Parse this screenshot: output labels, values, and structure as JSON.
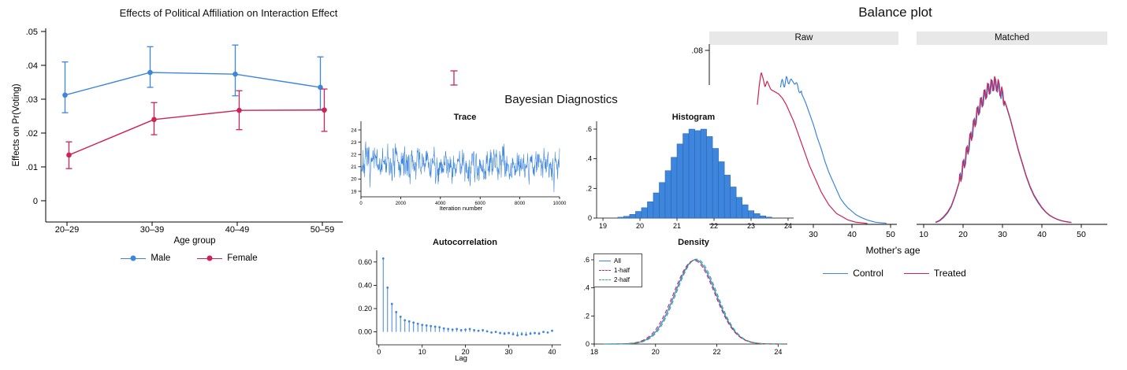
{
  "figure_titles": {
    "bayesian": "Bayesian Diagnostics"
  },
  "colors": {
    "blue": "#3d85dd",
    "crimson": "#cc2457",
    "green": "#3aa76d",
    "axis": "#000000",
    "band": "#e8e8e8"
  },
  "decorations": {
    "stray_error_bar": {
      "type": "error-bar-fragment",
      "color": "#cc2457"
    }
  },
  "chart_data": [
    {
      "id": "effects",
      "type": "line",
      "title": "Effects of Political Affiliation on Interaction Effect",
      "xlabel": "Age group",
      "ylabel": "Effects on Pr(Voting)",
      "categories": [
        "20–29",
        "30–39",
        "40–49",
        "50–59"
      ],
      "yticks": [
        0,
        0.01,
        0.02,
        0.03,
        0.04,
        0.05
      ],
      "ytick_labels": [
        "0",
        ".01",
        ".02",
        ".03",
        ".04",
        ".05"
      ],
      "ylim": [
        -0.006,
        0.053
      ],
      "legend_position": "bottom",
      "series": [
        {
          "name": "Male",
          "color": "#3d85dd",
          "values": [
            0.0312,
            0.0379,
            0.0374,
            0.0335
          ],
          "ci_low": [
            0.026,
            0.0335,
            0.031,
            0.027
          ],
          "ci_high": [
            0.041,
            0.0455,
            0.046,
            0.0425
          ]
        },
        {
          "name": "Female",
          "color": "#cc2457",
          "values": [
            0.0135,
            0.024,
            0.0267,
            0.0268
          ],
          "ci_low": [
            0.0095,
            0.0195,
            0.021,
            0.0205
          ],
          "ci_high": [
            0.0174,
            0.029,
            0.0325,
            0.033
          ]
        }
      ]
    },
    {
      "id": "trace",
      "type": "line",
      "title": "Trace",
      "xlabel": "Iteration number",
      "yticks": [
        19,
        20,
        21,
        22,
        23,
        24
      ],
      "xticks": [
        0,
        2000,
        4000,
        6000,
        8000,
        10000
      ],
      "ylim": [
        18.55,
        24.45
      ],
      "xlim": [
        0,
        10000
      ],
      "sim": {
        "seed": 7,
        "n": 750,
        "mean": 21.2,
        "clamp_min": 18.95,
        "clamp_max": 24.35
      }
    },
    {
      "id": "histogram",
      "type": "bar",
      "title": "Histogram",
      "xticks": [
        19,
        20,
        21,
        22,
        23,
        24
      ],
      "yticks": [
        0,
        0.2,
        0.4,
        0.6
      ],
      "ytick_labels": [
        "0",
        ".2",
        ".4",
        ".6"
      ],
      "xlim": [
        18.85,
        24.15
      ],
      "ylim": [
        0,
        0.65
      ],
      "bin_start": 19.4,
      "bin_width": 0.16,
      "values": [
        0.006,
        0.012,
        0.025,
        0.045,
        0.07,
        0.11,
        0.17,
        0.24,
        0.32,
        0.41,
        0.5,
        0.57,
        0.6,
        0.59,
        0.6,
        0.55,
        0.47,
        0.38,
        0.29,
        0.21,
        0.14,
        0.09,
        0.05,
        0.03,
        0.015,
        0.007
      ]
    },
    {
      "id": "autocorrelation",
      "type": "stem",
      "title": "Autocorrelation",
      "xlabel": "Lag",
      "xticks": [
        0,
        10,
        20,
        30,
        40
      ],
      "yticks": [
        0,
        0.2,
        0.4,
        0.6
      ],
      "ytick_labels": [
        "0.00",
        "0.20",
        "0.40",
        "0.60"
      ],
      "xlim": [
        -0.5,
        41
      ],
      "ylim": [
        -0.09,
        0.7
      ],
      "lag_start": 1,
      "values": [
        0.63,
        0.38,
        0.24,
        0.17,
        0.13,
        0.1,
        0.09,
        0.08,
        0.07,
        0.06,
        0.055,
        0.05,
        0.045,
        0.04,
        0.03,
        0.025,
        0.02,
        0.025,
        0.015,
        0.02,
        0.025,
        0.015,
        0.01,
        0.015,
        0.005,
        -0.005,
        0.0,
        -0.01,
        -0.015,
        -0.01,
        -0.02,
        -0.03,
        -0.02,
        -0.025,
        -0.015,
        -0.01,
        -0.015,
        0.0,
        -0.005,
        0.01
      ]
    },
    {
      "id": "density",
      "type": "line",
      "title": "Density",
      "xticks": [
        18,
        20,
        22,
        24
      ],
      "yticks": [
        0,
        0.2,
        0.4,
        0.6
      ],
      "ytick_labels": [
        "0",
        ".2",
        ".4",
        ".6"
      ],
      "xlim": [
        18,
        24.3
      ],
      "ylim": [
        0,
        0.65
      ],
      "legend_position": "top-left",
      "series": [
        {
          "name": "All",
          "color": "#3d85dd",
          "style": "solid",
          "mean": 21.3,
          "sd": 0.66,
          "peak": 0.6
        },
        {
          "name": "1-half",
          "color": "#cc2457",
          "style": "dash",
          "mean": 21.26,
          "sd": 0.67,
          "peak": 0.595
        },
        {
          "name": "2-half",
          "color": "#3aa76d",
          "style": "dash",
          "mean": 21.34,
          "sd": 0.655,
          "peak": 0.605
        }
      ]
    },
    {
      "id": "balance",
      "type": "line",
      "title": "Balance plot",
      "xlabel": "Mother's age",
      "yticks": [
        0.08
      ],
      "ytick_labels": [
        ".08"
      ],
      "ylim": [
        0,
        0.085
      ],
      "legend": [
        "Control",
        "Treated"
      ],
      "panels": [
        {
          "name": "Raw",
          "xticks": [
            30,
            40,
            50
          ],
          "series": [
            {
              "name": "Control",
              "color": "#3d85dd",
              "wiggle": {
                "amp": 0.0012,
                "period": 1.3,
                "from": 21.5,
                "to": 27,
                "phase": 0
              },
              "points": [
                [
                  21.5,
                  0.063
                ],
                [
                  22,
                  0.066
                ],
                [
                  22.5,
                  0.064
                ],
                [
                  23,
                  0.067
                ],
                [
                  23.5,
                  0.065
                ],
                [
                  24,
                  0.067
                ],
                [
                  24.5,
                  0.065
                ],
                [
                  25,
                  0.066
                ],
                [
                  26,
                  0.063
                ],
                [
                  27,
                  0.06
                ],
                [
                  28,
                  0.056
                ],
                [
                  29,
                  0.051
                ],
                [
                  30,
                  0.046
                ],
                [
                  31,
                  0.04
                ],
                [
                  32,
                  0.035
                ],
                [
                  33,
                  0.029
                ],
                [
                  34,
                  0.024
                ],
                [
                  35,
                  0.02
                ],
                [
                  36,
                  0.016
                ],
                [
                  37,
                  0.012
                ],
                [
                  38,
                  0.0095
                ],
                [
                  39,
                  0.0075
                ],
                [
                  40,
                  0.006
                ],
                [
                  41,
                  0.0045
                ],
                [
                  42,
                  0.0035
                ],
                [
                  43,
                  0.0027
                ],
                [
                  44,
                  0.002
                ],
                [
                  45,
                  0.0015
                ],
                [
                  46,
                  0.001
                ],
                [
                  47,
                  0.0008
                ],
                [
                  49,
                  0.0005
                ]
              ]
            },
            {
              "name": "Treated",
              "color": "#cc2457",
              "points": [
                [
                  15.5,
                  0.055
                ],
                [
                  16,
                  0.064
                ],
                [
                  16.5,
                  0.07
                ],
                [
                  17,
                  0.067
                ],
                [
                  17.5,
                  0.063
                ],
                [
                  18,
                  0.066
                ],
                [
                  18.5,
                  0.064
                ],
                [
                  19,
                  0.062
                ],
                [
                  20,
                  0.061
                ],
                [
                  21,
                  0.06
                ],
                [
                  22,
                  0.058
                ],
                [
                  23,
                  0.055
                ],
                [
                  24,
                  0.051
                ],
                [
                  25,
                  0.047
                ],
                [
                  26,
                  0.042
                ],
                [
                  27,
                  0.037
                ],
                [
                  28,
                  0.032
                ],
                [
                  29,
                  0.027
                ],
                [
                  30,
                  0.023
                ],
                [
                  31,
                  0.019
                ],
                [
                  32,
                  0.015
                ],
                [
                  33,
                  0.012
                ],
                [
                  34,
                  0.009
                ],
                [
                  35,
                  0.007
                ],
                [
                  36,
                  0.005
                ],
                [
                  37,
                  0.004
                ],
                [
                  38,
                  0.003
                ],
                [
                  39,
                  0.002
                ],
                [
                  40,
                  0.0015
                ],
                [
                  41,
                  0.001
                ],
                [
                  42,
                  0.0008
                ],
                [
                  43,
                  0.0006
                ],
                [
                  44,
                  0.0004
                ]
              ]
            }
          ]
        },
        {
          "name": "Matched",
          "xticks": [
            10,
            20,
            30,
            40,
            50
          ],
          "series": [
            {
              "name": "Control",
              "color": "#3d85dd",
              "wiggle": {
                "amp": 0.003,
                "period": 0.9,
                "from": 19,
                "to": 30.5,
                "phase": 0
              },
              "points": [
                [
                  13,
                  0.0008
                ],
                [
                  14,
                  0.0015
                ],
                [
                  15,
                  0.003
                ],
                [
                  16,
                  0.005
                ],
                [
                  17,
                  0.008
                ],
                [
                  18,
                  0.013
                ],
                [
                  19,
                  0.019
                ],
                [
                  20,
                  0.026
                ],
                [
                  21,
                  0.033
                ],
                [
                  22,
                  0.04
                ],
                [
                  23,
                  0.047
                ],
                [
                  24,
                  0.053
                ],
                [
                  25,
                  0.057
                ],
                [
                  26,
                  0.061
                ],
                [
                  27,
                  0.063
                ],
                [
                  28,
                  0.0645
                ],
                [
                  29,
                  0.063
                ],
                [
                  30,
                  0.059
                ],
                [
                  31,
                  0.054
                ],
                [
                  32,
                  0.048
                ],
                [
                  33,
                  0.041
                ],
                [
                  34,
                  0.034
                ],
                [
                  35,
                  0.028
                ],
                [
                  36,
                  0.022
                ],
                [
                  37,
                  0.017
                ],
                [
                  38,
                  0.013
                ],
                [
                  39,
                  0.01
                ],
                [
                  40,
                  0.0075
                ],
                [
                  41,
                  0.0055
                ],
                [
                  42,
                  0.004
                ],
                [
                  43,
                  0.003
                ],
                [
                  44,
                  0.0022
                ],
                [
                  45,
                  0.0016
                ],
                [
                  46,
                  0.0012
                ],
                [
                  47.5,
                  0.0008
                ]
              ]
            },
            {
              "name": "Treated",
              "color": "#cc2457",
              "wiggle": {
                "amp": 0.0032,
                "period": 0.9,
                "from": 19,
                "to": 30.5,
                "phase": 1.2
              },
              "points": [
                [
                  13,
                  0.001
                ],
                [
                  14,
                  0.0018
                ],
                [
                  15,
                  0.0034
                ],
                [
                  16,
                  0.0055
                ],
                [
                  17,
                  0.0085
                ],
                [
                  18,
                  0.0135
                ],
                [
                  19,
                  0.0195
                ],
                [
                  20,
                  0.0265
                ],
                [
                  21,
                  0.0335
                ],
                [
                  22,
                  0.0405
                ],
                [
                  23,
                  0.0475
                ],
                [
                  24,
                  0.0535
                ],
                [
                  25,
                  0.0575
                ],
                [
                  26,
                  0.0615
                ],
                [
                  27,
                  0.0635
                ],
                [
                  28,
                  0.065
                ],
                [
                  29,
                  0.0635
                ],
                [
                  30,
                  0.0595
                ],
                [
                  31,
                  0.0545
                ],
                [
                  32,
                  0.0485
                ],
                [
                  33,
                  0.0415
                ],
                [
                  34,
                  0.0345
                ],
                [
                  35,
                  0.0285
                ],
                [
                  36,
                  0.0225
                ],
                [
                  37,
                  0.0175
                ],
                [
                  38,
                  0.0135
                ],
                [
                  39,
                  0.0105
                ],
                [
                  40,
                  0.0078
                ],
                [
                  41,
                  0.0057
                ],
                [
                  42,
                  0.0042
                ],
                [
                  43,
                  0.0031
                ],
                [
                  44,
                  0.0023
                ],
                [
                  45,
                  0.0017
                ],
                [
                  46,
                  0.0013
                ],
                [
                  47.5,
                  0.0009
                ]
              ]
            }
          ]
        }
      ]
    }
  ]
}
